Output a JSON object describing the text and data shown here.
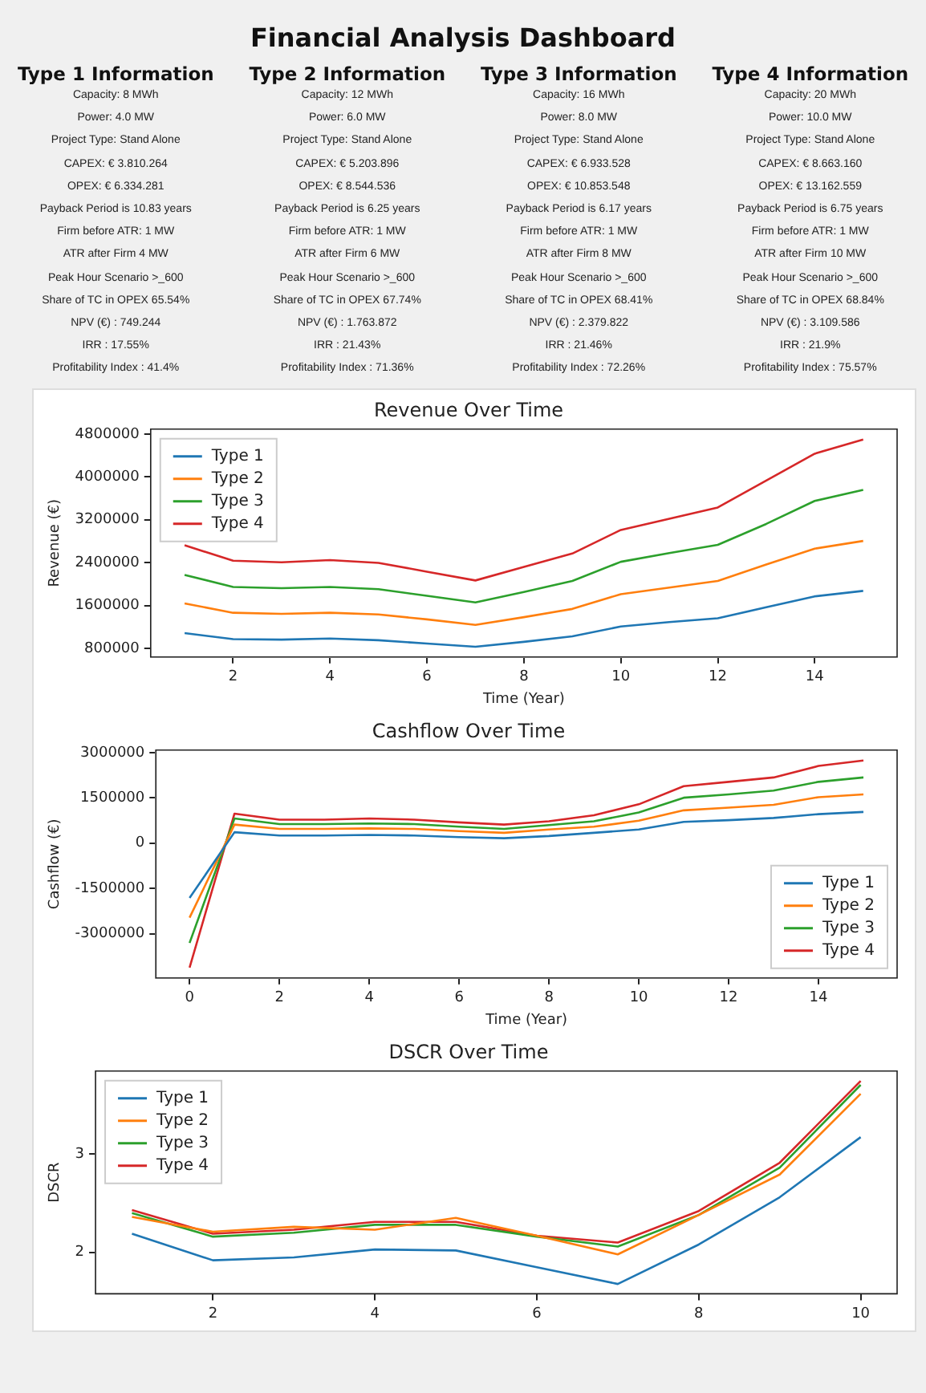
{
  "chart_data": [
    {
      "type": "other",
      "title": "Financial Analysis Dashboard"
    },
    {
      "type": "other",
      "title": "Type 1 Information",
      "annotations": [
        "Capacity: 8 MWh",
        "Power: 4.0 MW",
        "Project Type: Stand Alone",
        "CAPEX: € 3.810.264",
        "OPEX: € 6.334.281",
        "Payback Period is 10.83 years",
        "Firm before ATR: 1 MW",
        "ATR after Firm 4 MW",
        "Peak Hour Scenario >_600",
        "Share of TC in OPEX 65.54%",
        "NPV (€) : 749.244",
        "IRR : 17.55%",
        "Profitability Index : 41.4%"
      ]
    },
    {
      "type": "other",
      "title": "Type 2 Information",
      "annotations": [
        "Capacity: 12 MWh",
        "Power: 6.0 MW",
        "Project Type: Stand Alone",
        "CAPEX: € 5.203.896",
        "OPEX: € 8.544.536",
        "Payback Period is 6.25 years",
        "Firm before ATR: 1 MW",
        "ATR after Firm 6 MW",
        "Peak Hour Scenario >_600",
        "Share of TC in OPEX 67.74%",
        "NPV (€) : 1.763.872",
        "IRR : 21.43%",
        "Profitability Index : 71.36%"
      ]
    },
    {
      "type": "other",
      "title": "Type 3 Information",
      "annotations": [
        "Capacity: 16 MWh",
        "Power: 8.0 MW",
        "Project Type: Stand Alone",
        "CAPEX: € 6.933.528",
        "OPEX: € 10.853.548",
        "Payback Period is 6.17 years",
        "Firm before ATR: 1 MW",
        "ATR after Firm 8 MW",
        "Peak Hour Scenario >_600",
        "Share of TC in OPEX 68.41%",
        "NPV (€) : 2.379.822",
        "IRR : 21.46%",
        "Profitability Index : 72.26%"
      ]
    },
    {
      "type": "other",
      "title": "Type 4 Information",
      "annotations": [
        "Capacity: 20 MWh",
        "Power: 10.0 MW",
        "Project Type: Stand Alone",
        "CAPEX: € 8.663.160",
        "OPEX: € 13.162.559",
        "Payback Period is 6.75 years",
        "Firm before ATR: 1 MW",
        "ATR after Firm 10 MW",
        "Peak Hour Scenario >_600",
        "Share of TC in OPEX 68.84%",
        "NPV (€) : 3.109.586",
        "IRR : 21.9%",
        "Profitability Index : 75.57%"
      ]
    },
    {
      "type": "line",
      "title": "Revenue Over Time",
      "xlabel": "Time (Year)",
      "ylabel": "Revenue (€)",
      "x": [
        1,
        2,
        3,
        4,
        5,
        6,
        7,
        8,
        9,
        10,
        11,
        12,
        13,
        14,
        15
      ],
      "xlim": [
        0.3,
        15.7
      ],
      "xticks": [
        2,
        4,
        6,
        8,
        10,
        12,
        14
      ],
      "ylim": [
        640000,
        4890000
      ],
      "yticks": [
        800000,
        1600000,
        2400000,
        3200000,
        4000000,
        4800000
      ],
      "grid": false,
      "legend": "top left",
      "series": [
        {
          "name": "Type 1",
          "color": "#1f77b4",
          "values": [
            1086000,
            974000,
            964000,
            984000,
            953000,
            892000,
            831000,
            923000,
            1025000,
            1209000,
            1291000,
            1363000,
            1567000,
            1772000,
            1874000
          ]
        },
        {
          "name": "Type 2",
          "color": "#ff7f0e",
          "values": [
            1639000,
            1465000,
            1444000,
            1465000,
            1434000,
            1342000,
            1240000,
            1383000,
            1537000,
            1813000,
            1936000,
            2058000,
            2365000,
            2662000,
            2805000
          ]
        },
        {
          "name": "Type 3",
          "color": "#2ca02c",
          "values": [
            2171000,
            1946000,
            1925000,
            1946000,
            1905000,
            1782000,
            1659000,
            1854000,
            2058000,
            2416000,
            2580000,
            2733000,
            3122000,
            3552000,
            3756000
          ]
        },
        {
          "name": "Type 4",
          "color": "#d62728",
          "values": [
            2723000,
            2437000,
            2406000,
            2447000,
            2396000,
            2232000,
            2068000,
            2319000,
            2570000,
            3010000,
            3220000,
            3429000,
            3930000,
            4432000,
            4698000
          ]
        }
      ]
    },
    {
      "type": "line",
      "title": "Cashflow Over Time",
      "xlabel": "Time (Year)",
      "ylabel": "Cashflow (€)",
      "x": [
        0,
        1,
        2,
        3,
        4,
        5,
        6,
        7,
        8,
        9,
        10,
        11,
        12,
        13,
        14,
        15
      ],
      "xlim": [
        -0.75,
        15.75
      ],
      "xticks": [
        0,
        2,
        4,
        6,
        8,
        10,
        12,
        14
      ],
      "ylim": [
        -4460000,
        3080000
      ],
      "yticks": [
        -3000000,
        -1500000,
        0,
        1500000,
        3000000
      ],
      "grid": false,
      "legend": "bottom right",
      "series": [
        {
          "name": "Type 1",
          "color": "#1f77b4",
          "values": [
            -1813000,
            363000,
            254000,
            254000,
            272000,
            254000,
            199000,
            163000,
            236000,
            344000,
            453000,
            707000,
            761000,
            834000,
            961000,
            1033000
          ]
        },
        {
          "name": "Type 2",
          "color": "#ff7f0e",
          "values": [
            -2465000,
            616000,
            471000,
            471000,
            489000,
            471000,
            399000,
            344000,
            453000,
            544000,
            743000,
            1088000,
            1178000,
            1269000,
            1523000,
            1613000
          ]
        },
        {
          "name": "Type 3",
          "color": "#2ca02c",
          "values": [
            -3299000,
            816000,
            634000,
            634000,
            653000,
            634000,
            544000,
            471000,
            598000,
            725000,
            1015000,
            1504000,
            1613000,
            1740000,
            2030000,
            2175000
          ]
        },
        {
          "name": "Type 4",
          "color": "#d62728",
          "values": [
            -4115000,
            979000,
            779000,
            779000,
            816000,
            779000,
            689000,
            616000,
            725000,
            924000,
            1287000,
            1885000,
            2030000,
            2175000,
            2556000,
            2737000
          ]
        }
      ]
    },
    {
      "type": "line",
      "title": "DSCR Over Time",
      "ylabel": "DSCR",
      "x": [
        1,
        2,
        3,
        4,
        5,
        6,
        7,
        8,
        9,
        10
      ],
      "xlim": [
        0.55,
        10.45
      ],
      "xticks": [
        2,
        4,
        6,
        8,
        10
      ],
      "ylim": [
        1.58,
        3.84
      ],
      "yticks": [
        2,
        3
      ],
      "grid": false,
      "legend": "top left",
      "series": [
        {
          "name": "Type 1",
          "color": "#1f77b4",
          "values": [
            2.19,
            1.92,
            1.95,
            2.03,
            2.02,
            1.85,
            1.68,
            2.08,
            2.56,
            3.17
          ]
        },
        {
          "name": "Type 2",
          "color": "#ff7f0e",
          "values": [
            2.36,
            2.21,
            2.26,
            2.23,
            2.35,
            2.17,
            1.98,
            2.38,
            2.79,
            3.61
          ]
        },
        {
          "name": "Type 3",
          "color": "#2ca02c",
          "values": [
            2.4,
            2.16,
            2.2,
            2.28,
            2.28,
            2.16,
            2.06,
            2.38,
            2.86,
            3.7
          ]
        },
        {
          "name": "Type 4",
          "color": "#d62728",
          "values": [
            2.43,
            2.19,
            2.23,
            2.31,
            2.31,
            2.17,
            2.1,
            2.42,
            2.91,
            3.74
          ]
        }
      ]
    }
  ]
}
